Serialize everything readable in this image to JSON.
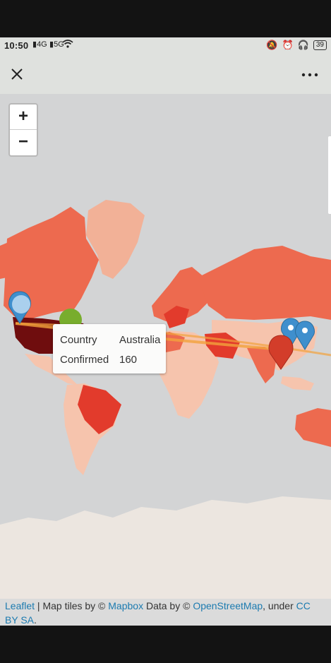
{
  "status_bar": {
    "time": "10:50",
    "signal_1": "4G",
    "signal_2": "5G",
    "battery": "39"
  },
  "title_bar": {
    "close_icon": "close-icon",
    "more_icon": "more-dots-icon"
  },
  "map": {
    "zoom_in_label": "+",
    "zoom_out_label": "−",
    "tooltip": {
      "country_key": "Country",
      "country_value": "Australia",
      "confirmed_key": "Confirmed",
      "confirmed_value": "160"
    },
    "colors": {
      "ocean": "#d3d4d5",
      "ice": "#ece6e0",
      "greenland": "#f2b197",
      "high": "#ed6a4f",
      "very_high": "#e23b2c",
      "extreme": "#6f0d0e",
      "light": "#f6c4ad",
      "marker_blue": "#3f8fcd",
      "marker_red": "#d33d2a",
      "marker_green": "#78ad2d",
      "route": "#f2a33c"
    }
  },
  "attribution": {
    "leaflet": "Leaflet",
    "sep": " | Map tiles by © ",
    "mapbox": "Mapbox",
    "data_by": " Data by © ",
    "osm": "OpenStreetMap",
    "under": ", under ",
    "license": "CC BY SA",
    "end": "."
  }
}
